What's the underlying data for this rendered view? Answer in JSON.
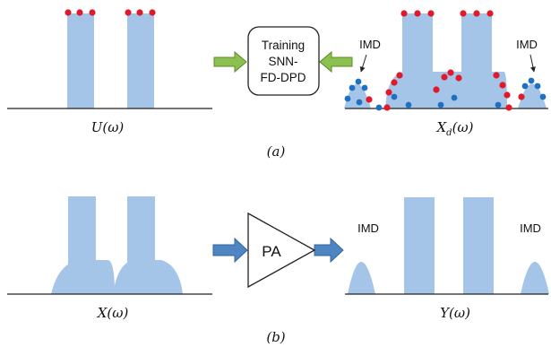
{
  "colors": {
    "spectrum_fill": "#a4c5e8",
    "green_arrow": "#8cc152",
    "green_arrow_stroke": "#5b8c2a",
    "blue_arrow": "#4e86c4",
    "blue_arrow_stroke": "#34649c",
    "red_dot": "#e0192b",
    "blue_dot": "#1f6fc4",
    "baseline": "#222222"
  },
  "panel_a": {
    "caption": "(a)",
    "left_label": "U(ω)",
    "box_lines": [
      "Training",
      "SNN-",
      "FD-DPD"
    ],
    "right_label": "X",
    "right_label_sub": "d",
    "right_label_tail": "(ω)",
    "imd_left": "IMD",
    "imd_right": "IMD"
  },
  "panel_b": {
    "caption": "(b)",
    "left_label": "X(ω)",
    "pa_label": "PA",
    "right_label": "Y(ω)",
    "imd_left": "IMD",
    "imd_right": "IMD"
  }
}
